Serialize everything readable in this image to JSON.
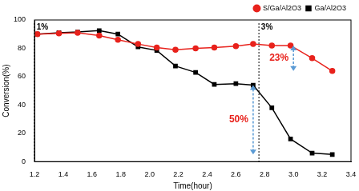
{
  "chart_data": {
    "type": "line",
    "x_label": "Time(hour)",
    "y_label": "Conversion(%)",
    "x": [
      1.22,
      1.37,
      1.5,
      1.65,
      1.78,
      1.92,
      2.05,
      2.18,
      2.32,
      2.45,
      2.6,
      2.72,
      2.85,
      2.98,
      3.13,
      3.27
    ],
    "series": [
      {
        "name": "S/Ga/Al2O3",
        "color": "#e8221c",
        "marker": "circle",
        "line_style": "solid",
        "values": [
          90,
          90.5,
          91,
          89,
          86,
          83,
          80.5,
          79,
          80,
          80.5,
          81.5,
          83,
          82,
          82,
          73,
          64
        ]
      },
      {
        "name": "Ga/Al2O3",
        "color": "#000000",
        "marker": "square",
        "line_style": "solid",
        "values": [
          90,
          91,
          91.5,
          92.5,
          90,
          81,
          78.5,
          67.5,
          63,
          54.5,
          55,
          54,
          38,
          16,
          6,
          5
        ]
      }
    ],
    "xlim": [
      1.2,
      3.4
    ],
    "xticks": [
      1.2,
      1.4,
      1.6,
      1.8,
      {
        "value": 2,
        "label": "2.0"
      },
      2.2,
      2.4,
      2.6,
      2.8,
      {
        "value": 3,
        "label": "3.0"
      },
      3.2,
      3.4
    ],
    "ylim": [
      0,
      100
    ],
    "yticks": [
      0,
      20,
      40,
      60,
      80,
      100
    ],
    "grid": false,
    "legend": "upper right",
    "annotations": [
      {
        "text": "1%",
        "x": 1.2
      },
      {
        "text": "3%",
        "x": 2.76
      },
      {
        "text": "50%",
        "x": 2.72,
        "y_from": 54,
        "y_to": 5
      },
      {
        "text": "23%",
        "x": 3,
        "y_from": 82,
        "y_to": 64
      }
    ]
  }
}
